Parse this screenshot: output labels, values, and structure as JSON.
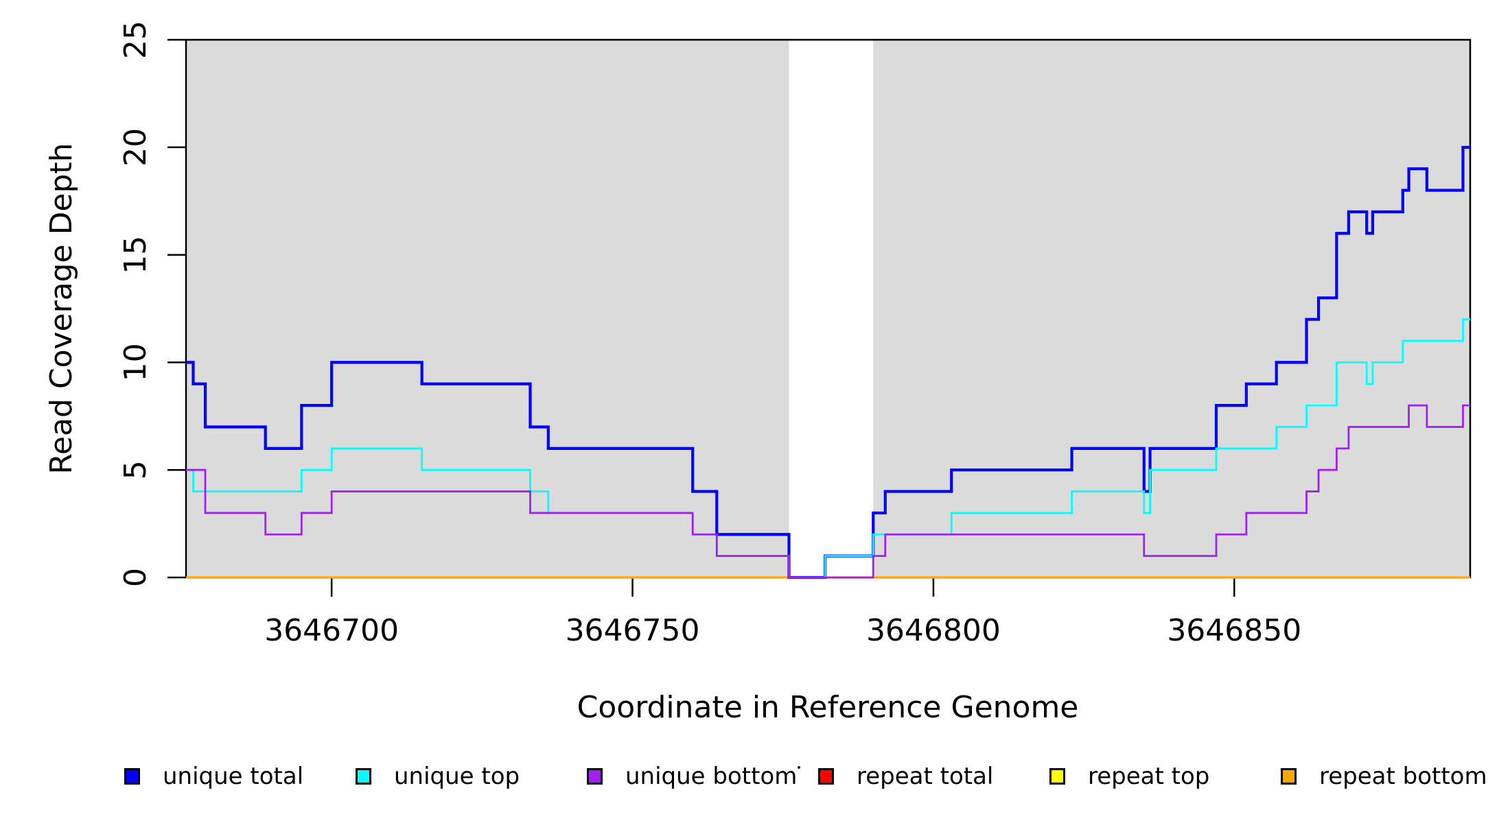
{
  "chart_data": {
    "type": "line",
    "subtype": "step",
    "title": "",
    "xlabel": "Coordinate in Reference Genome",
    "ylabel": "Read Coverage Depth",
    "xlim": [
      3646675.8,
      3646889.2
    ],
    "ylim": [
      0,
      25
    ],
    "x_ticks": [
      3646700,
      3646750,
      3646800,
      3646850
    ],
    "x_tick_labels": [
      "3646700",
      "3646750",
      "3646800",
      "3646850"
    ],
    "y_ticks": [
      0,
      5,
      10,
      15,
      20,
      25
    ],
    "y_tick_labels": [
      "0",
      "5",
      "10",
      "15",
      "20",
      "25"
    ],
    "grid": false,
    "legend_position": "bottom",
    "shaded_regions": [
      {
        "x0": 3646675.8,
        "x1": 3646776,
        "color": "#DBDBDB"
      },
      {
        "x0": 3646790,
        "x1": 3646889.2,
        "color": "#DBDBDB"
      }
    ],
    "series": [
      {
        "name": "repeat total",
        "color": "#FF0000",
        "line_width": 3,
        "breakpoints": [
          [
            3646675.8,
            0
          ]
        ]
      },
      {
        "name": "repeat top",
        "color": "#FFFF00",
        "line_width": 3,
        "breakpoints": [
          [
            3646675.8,
            0
          ]
        ]
      },
      {
        "name": "repeat bottom",
        "color": "#FFA500",
        "line_width": 3.2,
        "breakpoints": [
          [
            3646675.8,
            0
          ]
        ]
      },
      {
        "name": "unique total",
        "color": "#0000FF",
        "line_width": 4.2,
        "breakpoints": [
          [
            3646675.8,
            10
          ],
          [
            3646677,
            9
          ],
          [
            3646679,
            7
          ],
          [
            3646689,
            6
          ],
          [
            3646695,
            8
          ],
          [
            3646700,
            10
          ],
          [
            3646715,
            9
          ],
          [
            3646733,
            7
          ],
          [
            3646736,
            6
          ],
          [
            3646760,
            4
          ],
          [
            3646764,
            2
          ],
          [
            3646776,
            0
          ],
          [
            3646782,
            1
          ],
          [
            3646790,
            3
          ],
          [
            3646792,
            4
          ],
          [
            3646803,
            5
          ],
          [
            3646823,
            6
          ],
          [
            3646835,
            4
          ],
          [
            3646836,
            6
          ],
          [
            3646847,
            8
          ],
          [
            3646852,
            9
          ],
          [
            3646857,
            10
          ],
          [
            3646862,
            12
          ],
          [
            3646864,
            13
          ],
          [
            3646867,
            16
          ],
          [
            3646869,
            17
          ],
          [
            3646872,
            16
          ],
          [
            3646873,
            17
          ],
          [
            3646878,
            18
          ],
          [
            3646879,
            19
          ],
          [
            3646882,
            18
          ],
          [
            3646888,
            20
          ]
        ]
      },
      {
        "name": "unique top",
        "color": "#00FFFF",
        "line_width": 2.8,
        "breakpoints": [
          [
            3646675.8,
            5
          ],
          [
            3646677,
            4
          ],
          [
            3646695,
            5
          ],
          [
            3646700,
            6
          ],
          [
            3646715,
            5
          ],
          [
            3646733,
            4
          ],
          [
            3646736,
            3
          ],
          [
            3646760,
            2
          ],
          [
            3646764,
            1
          ],
          [
            3646776,
            0
          ],
          [
            3646782,
            1
          ],
          [
            3646790,
            2
          ],
          [
            3646803,
            3
          ],
          [
            3646823,
            4
          ],
          [
            3646835,
            3
          ],
          [
            3646836,
            5
          ],
          [
            3646847,
            6
          ],
          [
            3646857,
            7
          ],
          [
            3646862,
            8
          ],
          [
            3646867,
            10
          ],
          [
            3646872,
            9
          ],
          [
            3646873,
            10
          ],
          [
            3646878,
            11
          ],
          [
            3646888,
            12
          ]
        ]
      },
      {
        "name": "unique bottom",
        "color": "#A020F0",
        "line_width": 2.8,
        "breakpoints": [
          [
            3646675.8,
            5
          ],
          [
            3646679,
            3
          ],
          [
            3646689,
            2
          ],
          [
            3646695,
            3
          ],
          [
            3646700,
            4
          ],
          [
            3646733,
            3
          ],
          [
            3646760,
            2
          ],
          [
            3646764,
            1
          ],
          [
            3646776,
            0
          ],
          [
            3646790,
            1
          ],
          [
            3646792,
            2
          ],
          [
            3646835,
            1
          ],
          [
            3646847,
            2
          ],
          [
            3646852,
            3
          ],
          [
            3646862,
            4
          ],
          [
            3646864,
            5
          ],
          [
            3646867,
            6
          ],
          [
            3646869,
            7
          ],
          [
            3646879,
            8
          ],
          [
            3646882,
            7
          ],
          [
            3646888,
            8
          ]
        ]
      }
    ],
    "legend": {
      "items": [
        {
          "label": "unique total",
          "color": "#0000FF"
        },
        {
          "label": "unique top",
          "color": "#00FFFF"
        },
        {
          "label": "unique bottom",
          "color": "#A020F0"
        },
        {
          "label": "repeat total",
          "color": "#FF0000"
        },
        {
          "label": "repeat top",
          "color": "#FFFF00"
        },
        {
          "label": "repeat bottom",
          "color": "#FFA500"
        }
      ]
    }
  }
}
